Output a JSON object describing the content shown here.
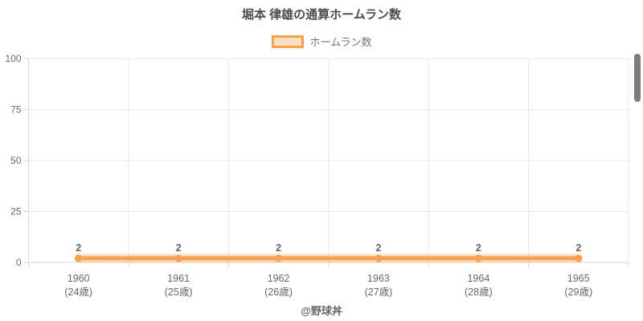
{
  "title": "堀本 律雄の通算ホームラン数",
  "legend": {
    "items": [
      {
        "label": "ホームラン数"
      }
    ]
  },
  "footer": "@野球丼",
  "colors": {
    "line": "#f9a050",
    "line_halo": "rgba(249,160,80,0.35)",
    "grid": "#e8e8e8",
    "axis": "#d6d6d6",
    "tick_text": "#666666",
    "data_label_text": "#666666",
    "title_text": "#4a4a4a",
    "scrollbar": "#7d7d7d"
  },
  "chart_data": {
    "type": "line",
    "title": "堀本 律雄の通算ホームラン数",
    "categories": [
      "1960",
      "1961",
      "1962",
      "1963",
      "1964",
      "1965"
    ],
    "category_sublabels": [
      "(24歳)",
      "(25歳)",
      "(26歳)",
      "(27歳)",
      "(28歳)",
      "(29歳)"
    ],
    "series": [
      {
        "name": "ホームラン数",
        "values": [
          2,
          2,
          2,
          2,
          2,
          2
        ]
      }
    ],
    "data_labels": [
      "2",
      "2",
      "2",
      "2",
      "2",
      "2"
    ],
    "ylim": [
      0,
      100
    ],
    "yticks": [
      0,
      25,
      50,
      75,
      100
    ],
    "xlabel": "",
    "ylabel": "",
    "grid": true,
    "legend_position": "top",
    "annotation": "@野球丼"
  }
}
